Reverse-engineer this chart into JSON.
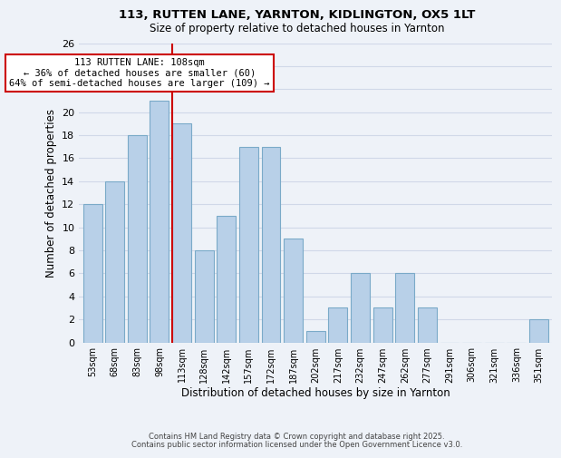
{
  "title1": "113, RUTTEN LANE, YARNTON, KIDLINGTON, OX5 1LT",
  "title2": "Size of property relative to detached houses in Yarnton",
  "xlabel": "Distribution of detached houses by size in Yarnton",
  "ylabel": "Number of detached properties",
  "bar_labels": [
    "53sqm",
    "68sqm",
    "83sqm",
    "98sqm",
    "113sqm",
    "128sqm",
    "142sqm",
    "157sqm",
    "172sqm",
    "187sqm",
    "202sqm",
    "217sqm",
    "232sqm",
    "247sqm",
    "262sqm",
    "277sqm",
    "291sqm",
    "306sqm",
    "321sqm",
    "336sqm",
    "351sqm"
  ],
  "bar_heights": [
    12,
    14,
    18,
    21,
    19,
    8,
    11,
    17,
    17,
    9,
    1,
    3,
    6,
    3,
    6,
    3,
    0,
    0,
    0,
    0,
    2
  ],
  "bar_color": "#b8d0e8",
  "bar_edge_color": "#7aaac8",
  "highlight_bar_index": 4,
  "highlight_line_color": "#cc0000",
  "annotation_title": "113 RUTTEN LANE: 108sqm",
  "annotation_line1": "← 36% of detached houses are smaller (60)",
  "annotation_line2": "64% of semi-detached houses are larger (109) →",
  "annotation_box_color": "#ffffff",
  "annotation_box_edge_color": "#cc0000",
  "ylim": [
    0,
    26
  ],
  "yticks": [
    0,
    2,
    4,
    6,
    8,
    10,
    12,
    14,
    16,
    18,
    20,
    22,
    24,
    26
  ],
  "grid_color": "#d0d8e8",
  "background_color": "#eef2f8",
  "footer1": "Contains HM Land Registry data © Crown copyright and database right 2025.",
  "footer2": "Contains public sector information licensed under the Open Government Licence v3.0."
}
